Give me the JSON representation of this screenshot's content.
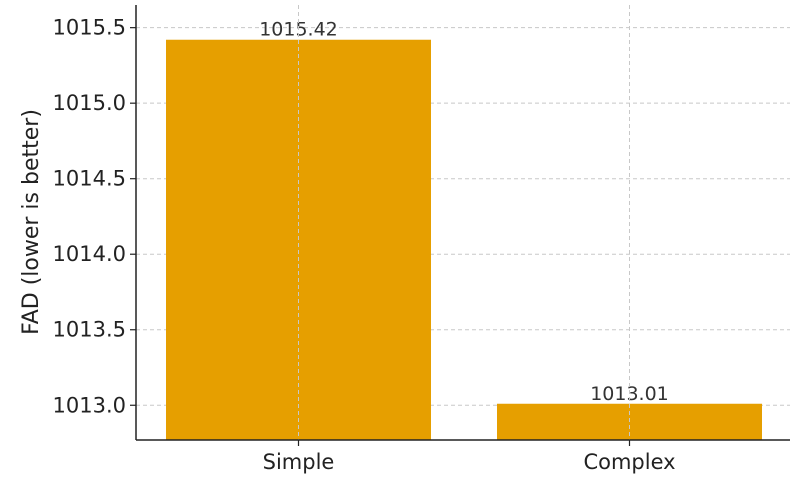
{
  "chart_data": {
    "type": "bar",
    "title": "",
    "xlabel": "",
    "ylabel": "FAD (lower is better)",
    "categories": [
      "Simple",
      "Complex"
    ],
    "values": [
      1015.42,
      1013.01
    ],
    "data_labels": [
      "1015.42",
      "1013.01"
    ],
    "ylim": [
      1012.77,
      1015.65
    ],
    "yticks": [
      1013.0,
      1013.5,
      1014.0,
      1014.5,
      1015.0,
      1015.5
    ],
    "ytick_labels": [
      "1013.0",
      "1013.5",
      "1014.0",
      "1014.5",
      "1015.0",
      "1015.5"
    ],
    "grid": true,
    "bar_color": "#E69F00"
  }
}
